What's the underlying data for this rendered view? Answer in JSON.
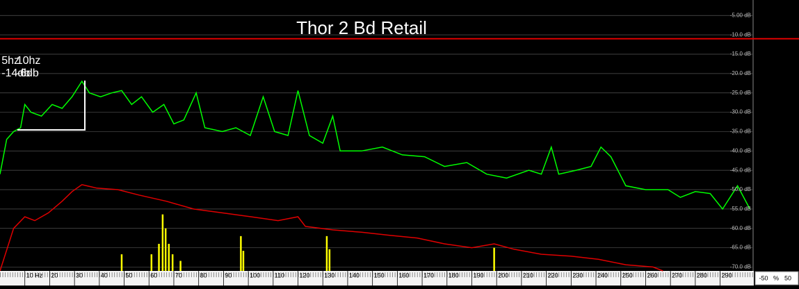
{
  "chart_data": {
    "type": "line",
    "title": "Thor 2 Bd Retail",
    "annotations": [
      {
        "lines": [
          "5hz",
          "-14db"
        ],
        "x": 4
      },
      {
        "lines": [
          "10hz",
          "-6db"
        ],
        "x": 10
      }
    ],
    "xlim": [
      0,
      303
    ],
    "ylim": [
      -71,
      -1
    ],
    "xticks": [
      {
        "value": 10,
        "label": "10 Hz"
      },
      20,
      30,
      40,
      50,
      60,
      70,
      80,
      90,
      100,
      110,
      120,
      130,
      140,
      150,
      160,
      170,
      180,
      190,
      200,
      210,
      220,
      230,
      240,
      250,
      260,
      270,
      280,
      290
    ],
    "yticks": [
      {
        "value": -5,
        "label": "-5.00 dB"
      },
      {
        "value": -10,
        "label": "-10.0 dB"
      },
      {
        "value": -15,
        "label": "-15.0 dB"
      },
      {
        "value": -20,
        "label": "-20.0 dB"
      },
      {
        "value": -25,
        "label": "-25.0 dB"
      },
      {
        "value": -30,
        "label": "-30.0 dB"
      },
      {
        "value": -35,
        "label": "-35.0 dB"
      },
      {
        "value": -40,
        "label": "-40.0 dB"
      },
      {
        "value": -45,
        "label": "-45.0 dB"
      },
      {
        "value": -50,
        "label": "-50.0 dB"
      },
      {
        "value": -55,
        "label": "-55.0 dB"
      },
      {
        "value": -60,
        "label": "-60.0 dB"
      },
      {
        "value": -65,
        "label": "-65.0 dB"
      },
      {
        "value": -70,
        "label": "-70.0 dB"
      }
    ],
    "grid": true,
    "reference_line": {
      "value": -11,
      "color": "#e00000"
    },
    "series": [
      {
        "color": "#00ff00",
        "style": "line",
        "x": [
          0,
          2.7,
          5.5,
          8.3,
          10,
          12.5,
          16.7,
          21,
          25,
          29,
          33,
          36,
          40.5,
          45,
          49,
          53,
          57,
          61.5,
          66,
          70,
          74,
          79,
          82.5,
          89.5,
          95,
          100.8,
          106,
          110.6,
          116,
          120,
          124.6,
          130,
          134,
          137,
          145.6,
          154,
          162,
          171,
          179,
          188,
          196,
          204,
          213,
          218,
          222,
          225,
          232,
          238,
          242,
          246,
          252,
          260,
          269,
          274,
          280,
          286,
          291,
          297,
          302
        ],
        "values": [
          -46,
          -37,
          -35,
          -34,
          -28,
          -30,
          -31,
          -28,
          -29,
          -26,
          -22,
          -25,
          -26,
          -25,
          -24.4,
          -28,
          -26,
          -30,
          -28,
          -33,
          -32,
          -25,
          -34,
          -35,
          -34,
          -36,
          -26,
          -35,
          -36,
          -24.4,
          -36,
          -38,
          -31,
          -40,
          -40,
          -39,
          -41,
          -41.5,
          -44,
          -43,
          -46,
          -47,
          -45,
          -46,
          -39,
          -46,
          -45,
          -44,
          -39,
          -41.5,
          -49,
          -50,
          -50,
          -52,
          -50.5,
          -51,
          -55,
          -49,
          -55
        ]
      },
      {
        "color": "#e00000",
        "style": "line",
        "x": [
          0,
          5.5,
          10,
          14,
          19.5,
          25,
          29,
          33,
          39,
          47.5,
          56,
          67,
          78,
          89.5,
          101,
          112,
          120,
          123,
          134,
          145.6,
          157,
          168,
          179,
          190,
          199,
          207,
          218,
          230,
          241,
          252,
          263,
          267
        ],
        "values": [
          -71,
          -60,
          -57,
          -58,
          -56,
          -53,
          -50.5,
          -48.7,
          -49.6,
          -50,
          -51.4,
          -53,
          -55,
          -56,
          -57,
          -58,
          -57,
          -59.5,
          -60.4,
          -61,
          -61.8,
          -62.5,
          -64,
          -65,
          -64,
          -65.4,
          -66.7,
          -67.2,
          -68,
          -69.4,
          -70,
          -71
        ]
      },
      {
        "color": "#ffff00",
        "style": "spikes",
        "x": [
          49,
          61,
          64,
          65.5,
          66.7,
          68,
          69.5,
          72.7,
          97,
          98,
          131.6,
          132.7,
          199
        ],
        "values": [
          -66.7,
          -66.7,
          -64,
          -56.4,
          -60,
          -64,
          -66.7,
          -68.4,
          -62,
          -65.8,
          -62,
          -65.4,
          -65
        ]
      }
    ]
  },
  "balance_control": {
    "left": "-50",
    "unit": "%",
    "right": "50"
  }
}
